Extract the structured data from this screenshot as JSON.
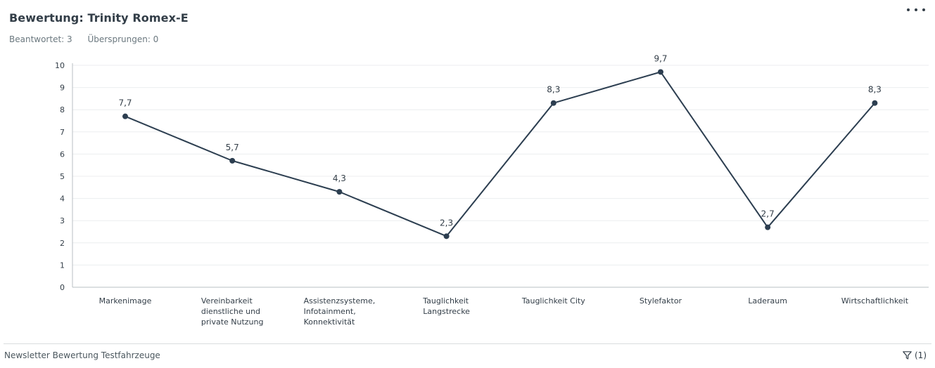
{
  "header": {
    "title": "Bewertung: Trinity Romex-E",
    "answered": "Beantwortet: 3",
    "skipped": "Übersprungen: 0",
    "more_icon": "more-horizontal-icon"
  },
  "footer": {
    "label": "Newsletter Bewertung Testfahrzeuge",
    "filter_icon": "filter-icon",
    "filter_count": "(1)"
  },
  "colors": {
    "line": "#2c3e50",
    "grid": "#eceeef",
    "axis_text": "#333e48"
  },
  "chart_data": {
    "type": "line",
    "title": "",
    "xlabel": "",
    "ylabel": "",
    "ylim": [
      0,
      10
    ],
    "yticks": [
      "0",
      "1",
      "2",
      "3",
      "4",
      "5",
      "6",
      "7",
      "8",
      "9",
      "10"
    ],
    "grid": true,
    "categories": [
      "Markenimage",
      "Vereinbarkeit dienstliche und private Nutzung",
      "Assistenzsysteme, Infotainment, Konnektivität",
      "Tauglichkeit Langstrecke",
      "Tauglichkeit City",
      "Stylefaktor",
      "Laderaum",
      "Wirtschaftlichkeit"
    ],
    "category_lines": [
      [
        "Markenimage"
      ],
      [
        "Vereinbarkeit",
        "dienstliche und",
        "private Nutzung"
      ],
      [
        "Assistenzsysteme,",
        "Infotainment,",
        "Konnektivität"
      ],
      [
        "Tauglichkeit",
        "Langstrecke"
      ],
      [
        "Tauglichkeit City"
      ],
      [
        "Stylefaktor"
      ],
      [
        "Laderaum"
      ],
      [
        "Wirtschaftlichkeit"
      ]
    ],
    "values": [
      7.7,
      5.7,
      4.3,
      2.3,
      8.3,
      9.7,
      2.7,
      8.3
    ],
    "data_labels": [
      "7,7",
      "5,7",
      "4,3",
      "2,3",
      "8,3",
      "9,7",
      "2,7",
      "8,3"
    ]
  }
}
